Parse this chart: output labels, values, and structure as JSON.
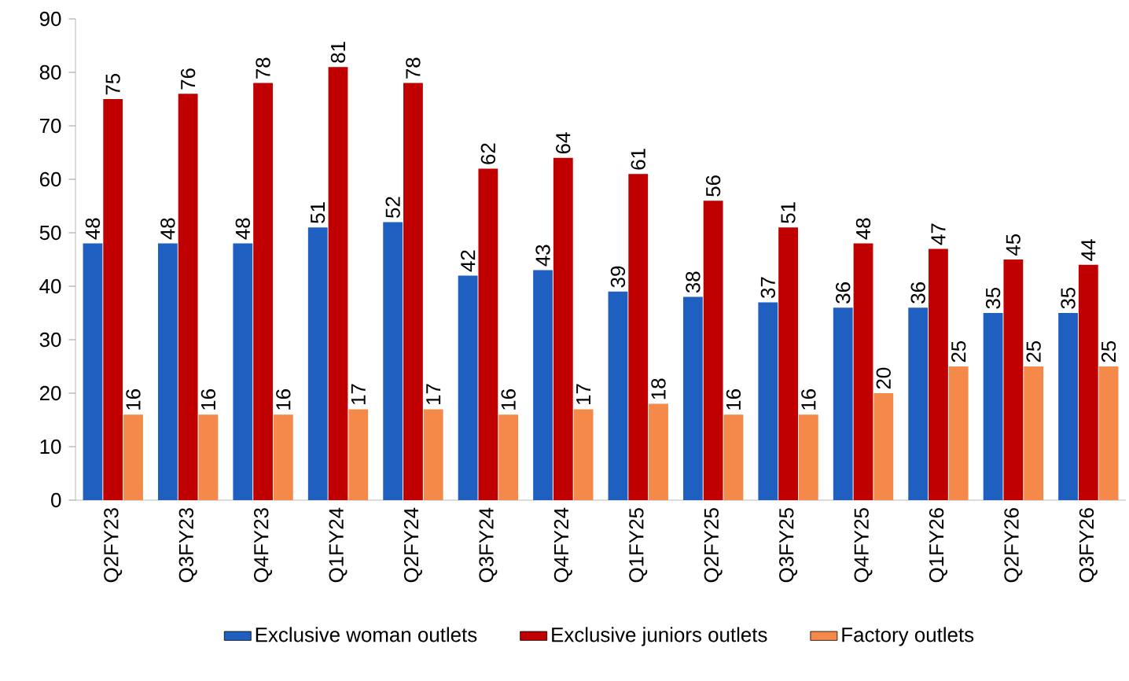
{
  "chart_data": {
    "type": "bar",
    "categories": [
      "Q2FY23",
      "Q3FY23",
      "Q4FY23",
      "Q1FY24",
      "Q2FY24",
      "Q3FY24",
      "Q4FY24",
      "Q1FY25",
      "Q2FY25",
      "Q3FY25",
      "Q4FY25",
      "Q1FY26",
      "Q2FY26",
      "Q3FY26"
    ],
    "series": [
      {
        "name": "Exclusive woman outlets",
        "color": "#1f5fbf",
        "values": [
          48,
          48,
          48,
          51,
          52,
          42,
          43,
          39,
          38,
          37,
          36,
          36,
          35,
          35
        ]
      },
      {
        "name": "Exclusive juniors outlets",
        "color": "#c00000",
        "values": [
          75,
          76,
          78,
          81,
          78,
          62,
          64,
          61,
          56,
          51,
          48,
          47,
          45,
          44
        ]
      },
      {
        "name": "Factory outlets",
        "color": "#f4894a",
        "values": [
          16,
          16,
          16,
          17,
          17,
          16,
          17,
          18,
          16,
          16,
          20,
          25,
          25,
          25
        ]
      }
    ],
    "ylim": [
      0,
      90
    ],
    "yticks": [
      0,
      10,
      20,
      30,
      40,
      50,
      60,
      70,
      80,
      90
    ],
    "data_labels": true,
    "legend": "bottom",
    "grid": false
  }
}
